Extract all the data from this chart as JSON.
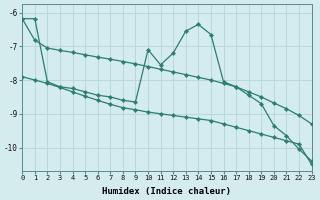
{
  "xlabel": "Humidex (Indice chaleur)",
  "xlim": [
    0,
    23
  ],
  "ylim": [
    -10.7,
    -5.75
  ],
  "yticks": [
    -10,
    -9,
    -8,
    -7,
    -6
  ],
  "xticks": [
    0,
    1,
    2,
    3,
    4,
    5,
    6,
    7,
    8,
    9,
    10,
    11,
    12,
    13,
    14,
    15,
    16,
    17,
    18,
    19,
    20,
    21,
    22,
    23
  ],
  "bg_color": "#d4ecee",
  "line_color": "#2d7d72",
  "grid_color": "#b8d8db",
  "line1_x": [
    0,
    1,
    2,
    3,
    4,
    5,
    6,
    7,
    8,
    9,
    10,
    11,
    12,
    13,
    14,
    15,
    16,
    17,
    18,
    19,
    20,
    21,
    22,
    23
  ],
  "line1_y": [
    -6.18,
    -6.18,
    -8.05,
    -8.2,
    -8.25,
    -8.35,
    -8.45,
    -8.5,
    -8.6,
    -8.65,
    -7.1,
    -7.55,
    -7.2,
    -6.55,
    -6.35,
    -6.65,
    -8.05,
    -8.2,
    -8.45,
    -8.7,
    -9.35,
    -9.65,
    -10.05,
    -10.4
  ],
  "line2_x": [
    0,
    1,
    2,
    3,
    4,
    5,
    6,
    7,
    8,
    9,
    10,
    11,
    12,
    13,
    14,
    15,
    16,
    17,
    18,
    19,
    20,
    21,
    22,
    23
  ],
  "line2_y": [
    -6.18,
    -6.82,
    -7.05,
    -7.12,
    -7.18,
    -7.25,
    -7.32,
    -7.38,
    -7.45,
    -7.52,
    -7.6,
    -7.68,
    -7.76,
    -7.84,
    -7.92,
    -8.0,
    -8.1,
    -8.2,
    -8.35,
    -8.5,
    -8.68,
    -8.85,
    -9.05,
    -9.3
  ],
  "line3_x": [
    0,
    1,
    2,
    3,
    4,
    5,
    6,
    7,
    8,
    9,
    10,
    11,
    12,
    13,
    14,
    15,
    16,
    17,
    18,
    19,
    20,
    21,
    22,
    23
  ],
  "line3_y": [
    -7.9,
    -8.0,
    -8.1,
    -8.22,
    -8.35,
    -8.48,
    -8.6,
    -8.72,
    -8.82,
    -8.88,
    -8.95,
    -9.0,
    -9.05,
    -9.1,
    -9.15,
    -9.2,
    -9.3,
    -9.4,
    -9.5,
    -9.6,
    -9.7,
    -9.8,
    -9.9,
    -10.5
  ]
}
